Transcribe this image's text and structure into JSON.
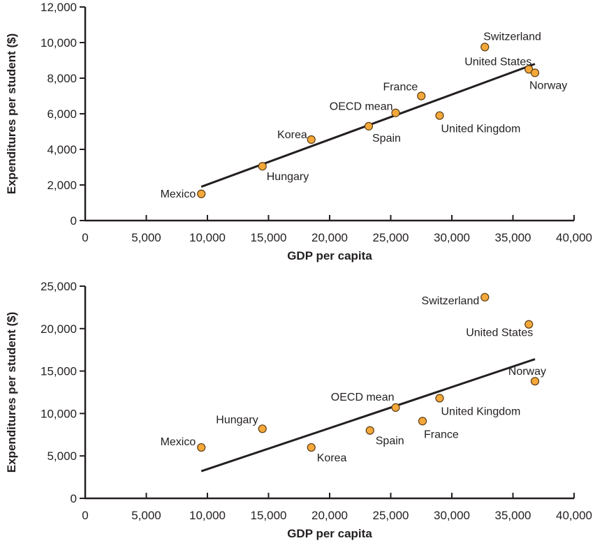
{
  "colors": {
    "point_fill": "#F4A83A",
    "point_stroke": "#5a3b12",
    "axis": "#231f20",
    "trend": "#231f20"
  },
  "chart_data": [
    {
      "type": "scatter",
      "xlabel": "GDP per capita",
      "ylabel": "Expenditures per student ($)",
      "xlim": [
        0,
        40000
      ],
      "ylim": [
        0,
        12000
      ],
      "x_ticks": [
        "0",
        "5,000",
        "10,000",
        "15,000",
        "20,000",
        "25,000",
        "30,000",
        "35,000",
        "40,000"
      ],
      "y_ticks": [
        "0",
        "2,000",
        "4,000",
        "6,000",
        "8,000",
        "10,000",
        "12,000"
      ],
      "grid": false,
      "points": [
        {
          "label": "Mexico",
          "x": 9500,
          "y": 1500
        },
        {
          "label": "Hungary",
          "x": 14500,
          "y": 3050
        },
        {
          "label": "Korea",
          "x": 18500,
          "y": 4550
        },
        {
          "label": "Spain",
          "x": 23200,
          "y": 5300
        },
        {
          "label": "OECD mean",
          "x": 25400,
          "y": 6050
        },
        {
          "label": "France",
          "x": 27500,
          "y": 7000
        },
        {
          "label": "United Kingdom",
          "x": 29000,
          "y": 5900
        },
        {
          "label": "Switzerland",
          "x": 32700,
          "y": 9750
        },
        {
          "label": "United States",
          "x": 36300,
          "y": 8500
        },
        {
          "label": "Norway",
          "x": 36800,
          "y": 8300
        }
      ],
      "trendline": {
        "x": [
          9500,
          36800
        ],
        "y": [
          1900,
          8800
        ]
      }
    },
    {
      "type": "scatter",
      "xlabel": "GDP per capita",
      "ylabel": "Expenditures per student ($)",
      "xlim": [
        0,
        40000
      ],
      "ylim": [
        0,
        25000
      ],
      "x_ticks": [
        "0",
        "5,000",
        "10,000",
        "15,000",
        "20,000",
        "25,000",
        "30,000",
        "35,000",
        "40,000"
      ],
      "y_ticks": [
        "0",
        "5,000",
        "10,000",
        "15,000",
        "20,000",
        "25,000"
      ],
      "grid": false,
      "points": [
        {
          "label": "Mexico",
          "x": 9500,
          "y": 6000
        },
        {
          "label": "Hungary",
          "x": 14500,
          "y": 8200
        },
        {
          "label": "Korea",
          "x": 18500,
          "y": 6000
        },
        {
          "label": "Spain",
          "x": 23300,
          "y": 8000
        },
        {
          "label": "OECD mean",
          "x": 25400,
          "y": 10700
        },
        {
          "label": "France",
          "x": 27600,
          "y": 9100
        },
        {
          "label": "United Kingdom",
          "x": 29000,
          "y": 11800
        },
        {
          "label": "Switzerland",
          "x": 32700,
          "y": 23700
        },
        {
          "label": "United States",
          "x": 36300,
          "y": 20500
        },
        {
          "label": "Norway",
          "x": 36800,
          "y": 13800
        }
      ],
      "trendline": {
        "x": [
          9500,
          36800
        ],
        "y": [
          3200,
          16400
        ]
      }
    }
  ]
}
